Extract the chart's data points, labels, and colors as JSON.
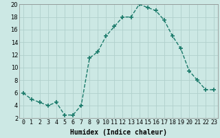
{
  "x": [
    0,
    1,
    2,
    3,
    4,
    5,
    6,
    7,
    8,
    9,
    10,
    11,
    12,
    13,
    14,
    15,
    16,
    17,
    18,
    19,
    20,
    21,
    22,
    23
  ],
  "y": [
    6.0,
    5.0,
    4.5,
    4.0,
    4.5,
    2.5,
    2.5,
    4.0,
    11.5,
    12.5,
    15.0,
    16.5,
    18.0,
    18.0,
    20.0,
    19.5,
    19.0,
    17.5,
    15.0,
    13.0,
    9.5,
    8.0,
    6.5,
    6.5
  ],
  "line_color": "#1a7a6a",
  "marker": "+",
  "marker_size": 4,
  "bg_color": "#cce8e4",
  "grid_color": "#b0d0cc",
  "xlabel": "Humidex (Indice chaleur)",
  "xlabel_fontsize": 7,
  "ylim": [
    2,
    20
  ],
  "xlim": [
    -0.5,
    23.5
  ],
  "yticks": [
    2,
    4,
    6,
    8,
    10,
    12,
    14,
    16,
    18,
    20
  ],
  "xtick_labels": [
    "0",
    "1",
    "2",
    "3",
    "4",
    "5",
    "6",
    "7",
    "8",
    "9",
    "10",
    "11",
    "12",
    "13",
    "14",
    "15",
    "16",
    "17",
    "18",
    "19",
    "20",
    "21",
    "22",
    "23"
  ],
  "tick_fontsize": 6
}
